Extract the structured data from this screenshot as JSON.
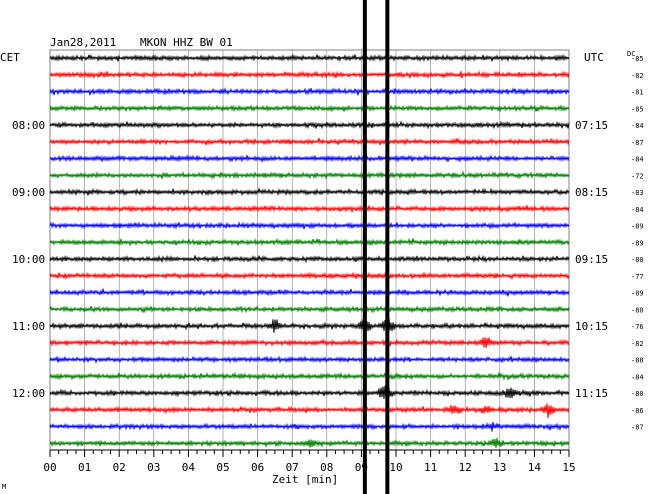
{
  "header": {
    "date": "Jan28,2011",
    "station": "MKON HHZ BW 01",
    "left_zone": "CET",
    "right_zone": "UTC",
    "dc_label": "DC"
  },
  "colors": {
    "trace_cycle": [
      "#000000",
      "#ff0000",
      "#0000ff",
      "#008000"
    ],
    "grid": "#808080",
    "marker": "#000000"
  },
  "chart_data": {
    "type": "line",
    "title": "Jan28,2011 MKON HHZ BW 01",
    "xlabel": "Zeit [min]",
    "xlim": [
      0,
      15
    ],
    "x_ticks": [
      "00",
      "01",
      "02",
      "03",
      "04",
      "05",
      "06",
      "07",
      "08",
      "09",
      "10",
      "11",
      "12",
      "13",
      "14",
      "15"
    ],
    "rows": 24,
    "row_minutes": 15,
    "left_time_labels": [
      {
        "row": 4,
        "text": "08:00"
      },
      {
        "row": 8,
        "text": "09:00"
      },
      {
        "row": 12,
        "text": "10:00"
      },
      {
        "row": 16,
        "text": "11:00"
      },
      {
        "row": 20,
        "text": "12:00"
      }
    ],
    "right_time_labels": [
      {
        "row": 4,
        "text": "07:15"
      },
      {
        "row": 8,
        "text": "08:15"
      },
      {
        "row": 12,
        "text": "09:15"
      },
      {
        "row": 16,
        "text": "10:15"
      },
      {
        "row": 20,
        "text": "11:15"
      }
    ],
    "dc_offsets": [
      "-85",
      "-82",
      "-81",
      "-85",
      "-84",
      "-87",
      "-84",
      "-72",
      "-83",
      "-84",
      "-89",
      "-89",
      "-80",
      "-77",
      "-89",
      "-80",
      "-76",
      "-82",
      "-88",
      "-84",
      "-80",
      "-86",
      "-87"
    ],
    "vertical_markers_min": [
      9.1,
      9.75
    ],
    "events": [
      {
        "row": 16,
        "minute": 6.5,
        "amp": 6
      },
      {
        "row": 16,
        "minute": 9.75,
        "amp": 10
      },
      {
        "row": 16,
        "minute": 9.1,
        "amp": 6
      },
      {
        "row": 17,
        "minute": 12.6,
        "amp": 5
      },
      {
        "row": 20,
        "minute": 9.7,
        "amp": 9
      },
      {
        "row": 20,
        "minute": 13.3,
        "amp": 5
      },
      {
        "row": 21,
        "minute": 11.7,
        "amp": 6
      },
      {
        "row": 21,
        "minute": 12.6,
        "amp": 4
      },
      {
        "row": 21,
        "minute": 14.4,
        "amp": 6
      },
      {
        "row": 22,
        "minute": 12.8,
        "amp": 3
      },
      {
        "row": 23,
        "minute": 12.9,
        "amp": 4
      },
      {
        "row": 23,
        "minute": 7.5,
        "amp": 3
      }
    ]
  },
  "footer": {
    "mark": "M"
  }
}
